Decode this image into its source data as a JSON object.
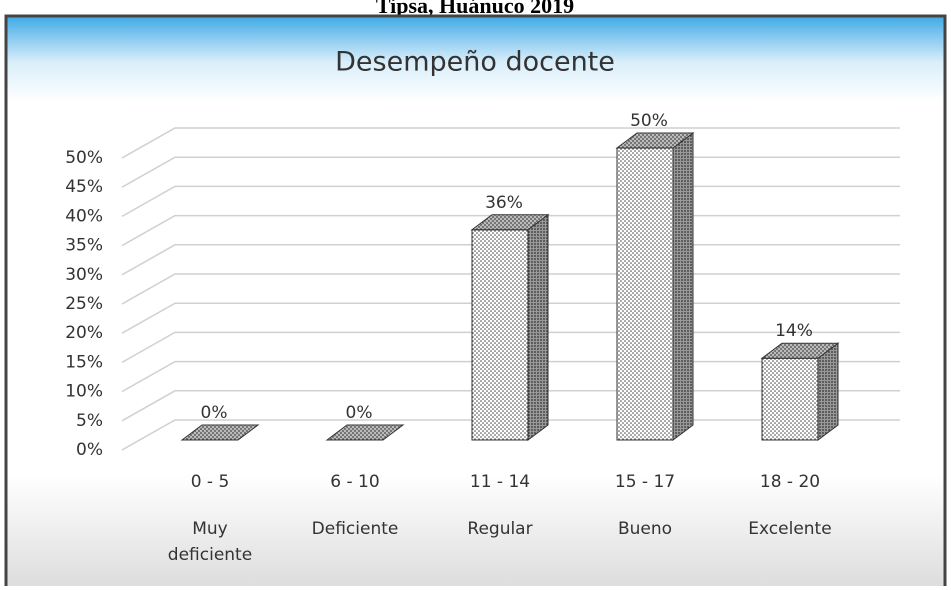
{
  "heading": "Tipsa, Huánuco 2019",
  "chart_data": {
    "type": "bar3d",
    "title": "Desempeño docente",
    "categories": [
      "0 - 5",
      "6 - 10",
      "11 - 14",
      "15 - 17",
      "18 - 20"
    ],
    "groups": [
      "Muy deficiente",
      "Deficiente",
      "Regular",
      "Bueno",
      "Excelente"
    ],
    "values": [
      0,
      0,
      36,
      50,
      14
    ],
    "value_labels": [
      "0%",
      "0%",
      "36%",
      "50%",
      "14%"
    ],
    "ylim": [
      0,
      50
    ],
    "yticks": [
      {
        "value": 0,
        "label": "0%"
      },
      {
        "value": 5,
        "label": "5%"
      },
      {
        "value": 10,
        "label": "10%"
      },
      {
        "value": 15,
        "label": "15%"
      },
      {
        "value": 20,
        "label": "20%"
      },
      {
        "value": 25,
        "label": "25%"
      },
      {
        "value": 30,
        "label": "30%"
      },
      {
        "value": 35,
        "label": "35%"
      },
      {
        "value": 40,
        "label": "40%"
      },
      {
        "value": 45,
        "label": "45%"
      },
      {
        "value": 50,
        "label": "50%"
      }
    ],
    "grid": true
  }
}
